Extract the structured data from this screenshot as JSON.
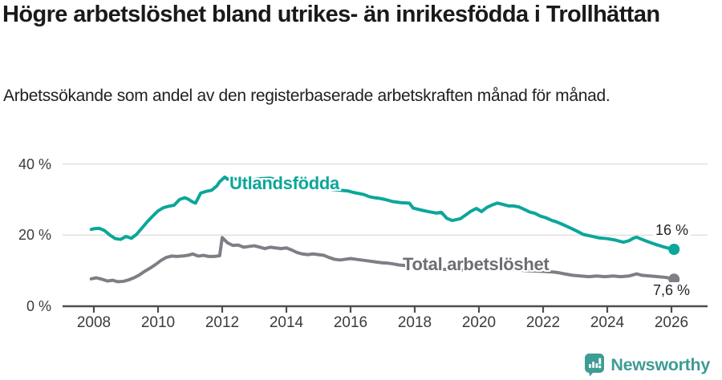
{
  "page": {
    "title": "Högre arbetslöshet bland utrikes- än inrikesfödda i Trollhättan",
    "subtitle": "Arbetssökande som andel av den registerbaserade arbetskraften månad för månad."
  },
  "footer": {
    "brand": "Newsworthy",
    "brand_color": "#3e9c94",
    "logo_icon": "newsworthy-pin-barchart-icon"
  },
  "chart_data": {
    "type": "line",
    "title": "Högre arbetslöshet bland utrikes- än inrikesfödda i Trollhättan",
    "subtitle": "Arbetssökande som andel av den registerbaserade arbetskraften månad för månad.",
    "x_unit": "year, monthly observations",
    "ylim": [
      0,
      44
    ],
    "xlim": [
      2007.3,
      2027.2
    ],
    "grid": "horizontal",
    "legend_position": "inline-labels",
    "yticks": [
      {
        "value": 0,
        "label": "0 %"
      },
      {
        "value": 20,
        "label": "20 %"
      },
      {
        "value": 40,
        "label": "40 %"
      }
    ],
    "xticks": [
      {
        "value": 2008,
        "label": "2008"
      },
      {
        "value": 2010,
        "label": "2010"
      },
      {
        "value": 2012,
        "label": "2012"
      },
      {
        "value": 2014,
        "label": "2014"
      },
      {
        "value": 2016,
        "label": "2016"
      },
      {
        "value": 2018,
        "label": "2018"
      },
      {
        "value": 2020,
        "label": "2020"
      },
      {
        "value": 2022,
        "label": "2022"
      },
      {
        "value": 2024,
        "label": "2024"
      },
      {
        "value": 2026,
        "label": "2026"
      }
    ],
    "series": [
      {
        "name": "Utlandsfödda",
        "color": "#0ca69a",
        "end_label": "16 %",
        "end_value": 16,
        "x": [
          2007.92,
          2008.0,
          2008.17,
          2008.33,
          2008.5,
          2008.67,
          2008.83,
          2008.92,
          2009.0,
          2009.17,
          2009.33,
          2009.5,
          2009.67,
          2009.83,
          2010.0,
          2010.17,
          2010.33,
          2010.5,
          2010.67,
          2010.83,
          2010.92,
          2011.08,
          2011.17,
          2011.33,
          2011.5,
          2011.67,
          2011.83,
          2011.92,
          2012.08,
          2012.17,
          2012.33,
          2012.5,
          2012.75,
          2013.0,
          2013.25,
          2013.5,
          2013.75,
          2014.0,
          2014.25,
          2014.5,
          2014.75,
          2015.0,
          2015.25,
          2015.58,
          2015.92,
          2016.08,
          2016.25,
          2016.42,
          2016.58,
          2016.75,
          2016.92,
          2017.08,
          2017.33,
          2017.58,
          2017.83,
          2017.95,
          2018.17,
          2018.42,
          2018.67,
          2018.83,
          2019.0,
          2019.17,
          2019.42,
          2019.58,
          2019.75,
          2019.92,
          2020.08,
          2020.25,
          2020.42,
          2020.58,
          2020.75,
          2020.92,
          2021.08,
          2021.25,
          2021.42,
          2021.58,
          2021.75,
          2021.92,
          2022.08,
          2022.25,
          2022.42,
          2022.58,
          2022.75,
          2022.92,
          2023.08,
          2023.25,
          2023.5,
          2023.75,
          2024.0,
          2024.25,
          2024.5,
          2024.67,
          2024.83,
          2024.92,
          2025.08,
          2025.25,
          2025.5,
          2025.75,
          2025.92,
          2026.08
        ],
        "values": [
          21.6,
          21.8,
          21.9,
          21.3,
          20.0,
          19.0,
          18.8,
          19.2,
          19.6,
          19.1,
          20.2,
          22.0,
          23.8,
          25.3,
          26.8,
          27.7,
          28.1,
          28.4,
          30.0,
          30.5,
          30.2,
          29.3,
          29.0,
          31.8,
          32.3,
          32.6,
          33.8,
          35.0,
          36.3,
          35.7,
          36.0,
          35.6,
          35.4,
          35.6,
          35.9,
          36.0,
          35.4,
          34.9,
          34.4,
          33.9,
          33.5,
          33.2,
          33.0,
          32.7,
          32.4,
          32.0,
          31.7,
          31.4,
          30.8,
          30.5,
          30.3,
          30.0,
          29.4,
          29.1,
          29.0,
          27.6,
          27.1,
          26.6,
          26.2,
          26.4,
          24.7,
          24.1,
          24.6,
          25.6,
          26.7,
          27.5,
          26.6,
          27.8,
          28.5,
          29.0,
          28.6,
          28.2,
          28.2,
          27.9,
          27.2,
          26.5,
          26.1,
          25.3,
          24.9,
          24.2,
          23.7,
          23.1,
          22.4,
          21.7,
          21.0,
          20.2,
          19.7,
          19.2,
          19.0,
          18.6,
          18.0,
          18.4,
          19.2,
          19.4,
          18.8,
          18.2,
          17.4,
          16.7,
          16.3,
          16.0
        ]
      },
      {
        "name": "Total arbetslöshet",
        "color": "#7f7e85",
        "end_label": "7,6 %",
        "end_value": 7.6,
        "x": [
          2007.92,
          2008.08,
          2008.25,
          2008.42,
          2008.58,
          2008.75,
          2008.92,
          2009.08,
          2009.25,
          2009.42,
          2009.58,
          2009.75,
          2009.92,
          2010.08,
          2010.25,
          2010.42,
          2010.58,
          2010.75,
          2010.92,
          2011.08,
          2011.25,
          2011.42,
          2011.58,
          2011.75,
          2011.92,
          2012.0,
          2012.17,
          2012.33,
          2012.5,
          2012.67,
          2012.83,
          2013.0,
          2013.17,
          2013.33,
          2013.5,
          2013.67,
          2013.83,
          2014.0,
          2014.17,
          2014.33,
          2014.5,
          2014.67,
          2014.83,
          2015.0,
          2015.17,
          2015.33,
          2015.5,
          2015.67,
          2015.83,
          2016.0,
          2016.17,
          2016.33,
          2016.5,
          2016.67,
          2016.83,
          2017.0,
          2017.17,
          2017.33,
          2017.5,
          2017.75,
          2018.0,
          2018.5,
          2019.0,
          2019.5,
          2020.0,
          2020.5,
          2021.0,
          2021.5,
          2022.0,
          2022.33,
          2022.5,
          2022.67,
          2022.92,
          2023.17,
          2023.42,
          2023.67,
          2023.92,
          2024.17,
          2024.42,
          2024.67,
          2024.92,
          2025.08,
          2025.33,
          2025.58,
          2025.83,
          2026.08
        ],
        "values": [
          7.7,
          8.0,
          7.6,
          7.1,
          7.3,
          6.9,
          7.0,
          7.4,
          8.0,
          8.8,
          9.8,
          10.7,
          11.7,
          12.8,
          13.7,
          14.1,
          14.0,
          14.1,
          14.3,
          14.7,
          14.1,
          14.3,
          14.0,
          14.0,
          14.2,
          19.3,
          17.8,
          17.1,
          17.2,
          16.6,
          16.8,
          17.0,
          16.6,
          16.2,
          16.6,
          16.4,
          16.2,
          16.4,
          15.8,
          15.1,
          14.7,
          14.5,
          14.7,
          14.5,
          14.3,
          13.7,
          13.2,
          13.0,
          13.2,
          13.4,
          13.2,
          13.0,
          12.8,
          12.6,
          12.4,
          12.2,
          12.1,
          11.9,
          11.6,
          11.4,
          11.1,
          10.7,
          10.3,
          10.2,
          10.6,
          10.8,
          10.4,
          10.0,
          9.8,
          9.6,
          9.4,
          9.1,
          8.7,
          8.5,
          8.3,
          8.5,
          8.3,
          8.5,
          8.3,
          8.5,
          9.1,
          8.7,
          8.5,
          8.3,
          8.1,
          7.6
        ]
      }
    ]
  }
}
